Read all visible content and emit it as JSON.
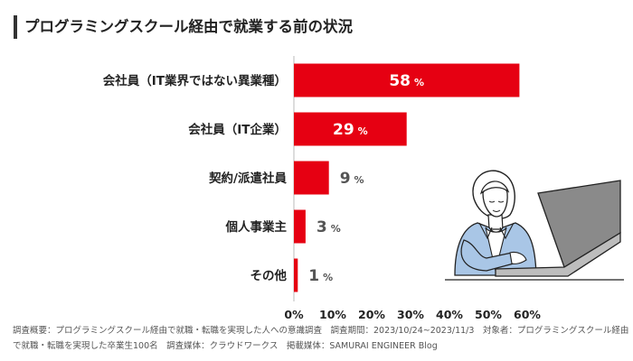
{
  "title": "プログラミングスクール経由で就業する前の状況",
  "chart_data": {
    "type": "bar",
    "orientation": "horizontal",
    "categories": [
      "会社員（IT業界ではない異業種）",
      "会社員（IT企業）",
      "契約/派遣社員",
      "個人事業主",
      "その他"
    ],
    "values": [
      58,
      29,
      9,
      3,
      1
    ],
    "value_unit": "%",
    "xlim": [
      0,
      60
    ],
    "xticks": [
      "0%",
      "10%",
      "20%",
      "30%",
      "40%",
      "50%",
      "60%"
    ],
    "grid": false,
    "legend": "none",
    "title": "",
    "xlabel": "",
    "ylabel": ""
  },
  "colors": {
    "bar": "#e60012",
    "label_on_bar": "#ffffff",
    "label_outside": "#555555",
    "axis_line": "#bbbbbb"
  },
  "footer": {
    "line1": "調査概要：プログラミングスクール経由で就職・転職を実現した人への意識調査　調査期間：2023/10/24~2023/11/3　対象者：プログラミングスクール経由",
    "line2": "で就職・転職を実現した卒業生100名　調査媒体：クラウドワークス　掲載媒体：SAMURAI ENGINEER Blog"
  },
  "illustration": "woman-using-laptop-illustration"
}
